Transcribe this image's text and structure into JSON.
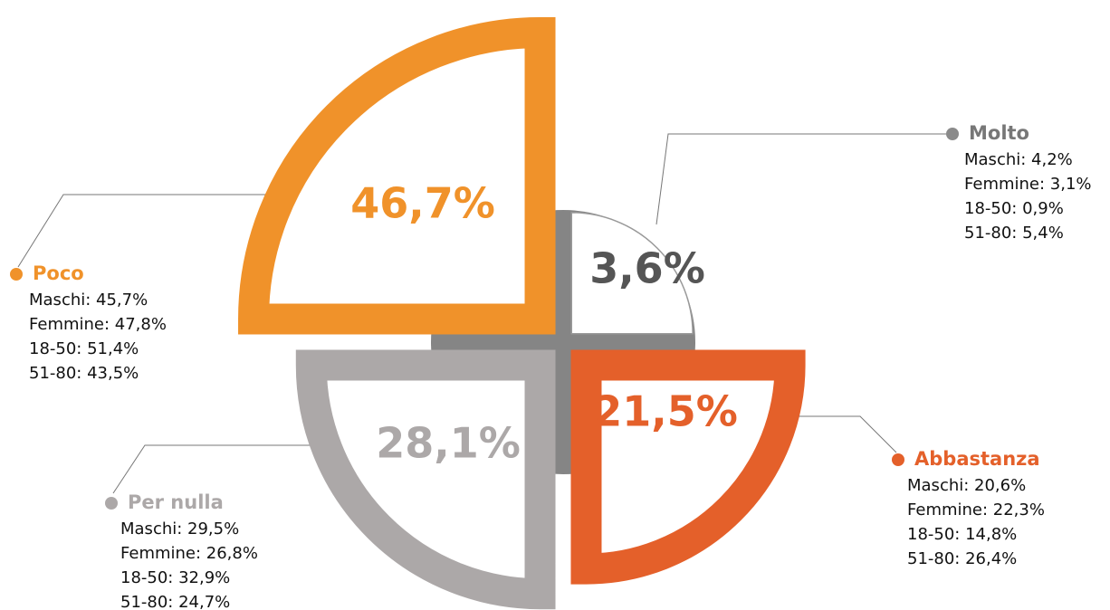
{
  "chart_data": {
    "type": "polar",
    "categories": [
      "Molto",
      "Abbastanza",
      "Per nulla",
      "Poco"
    ],
    "values": [
      3.6,
      21.5,
      28.1,
      46.7
    ],
    "value_labels": [
      "3,6%",
      "21,5%",
      "28,1%",
      "46,7%"
    ],
    "colors": [
      "#8a8a8a",
      "#e4602a",
      "#aca8a8",
      "#f0922a"
    ],
    "details": [
      [
        "Maschi: 4,2%",
        "Femmine: 3,1%",
        "18-50: 0,9%",
        "51-80: 5,4%"
      ],
      [
        "Maschi: 20,6%",
        "Femmine: 22,3%",
        "18-50: 14,8%",
        "51-80: 26,4%"
      ],
      [
        "Maschi: 29,5%",
        "Femmine: 26,8%",
        "18-50: 32,9%",
        "51-80: 24,7%"
      ],
      [
        "Maschi: 45,7%",
        "Femmine: 47,8%",
        "18-50: 51,4%",
        "51-80: 43,5%"
      ]
    ]
  }
}
